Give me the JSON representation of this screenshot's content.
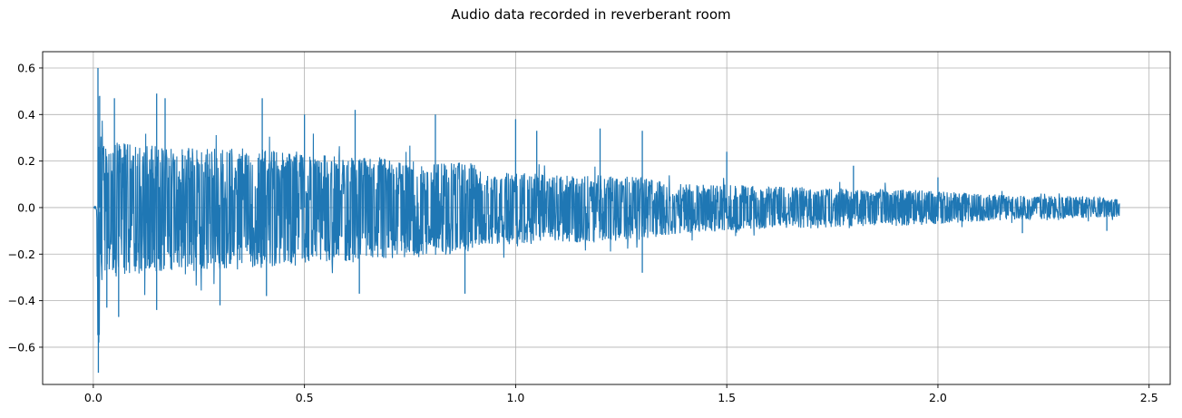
{
  "chart_data": {
    "type": "line",
    "title": "Audio data recorded in reverberant room",
    "xlabel": "",
    "ylabel": "",
    "xlim": [
      -0.12,
      2.55
    ],
    "ylim": [
      -0.76,
      0.67
    ],
    "grid": true,
    "line_color": "#1f77b4",
    "x_ticks": [
      {
        "value": 0.0,
        "label": "0.0"
      },
      {
        "value": 0.5,
        "label": "0.5"
      },
      {
        "value": 1.0,
        "label": "1.0"
      },
      {
        "value": 1.5,
        "label": "1.5"
      },
      {
        "value": 2.0,
        "label": "2.0"
      },
      {
        "value": 2.5,
        "label": "2.5"
      }
    ],
    "y_ticks": [
      {
        "value": -0.6,
        "label": "−0.6"
      },
      {
        "value": -0.4,
        "label": "−0.4"
      },
      {
        "value": -0.2,
        "label": "−0.2"
      },
      {
        "value": 0.0,
        "label": "0.0"
      },
      {
        "value": 0.2,
        "label": "0.2"
      },
      {
        "value": 0.4,
        "label": "0.4"
      },
      {
        "value": 0.6,
        "label": "0.6"
      }
    ],
    "series": [
      {
        "duration_s": 2.43,
        "envelope": {
          "x": [
            0.0,
            0.008,
            0.01,
            0.012,
            0.015,
            0.03,
            0.06,
            0.1,
            0.2,
            0.3,
            0.4,
            0.5,
            0.6,
            0.7,
            0.8,
            0.9,
            0.92,
            1.0,
            1.1,
            1.2,
            1.3,
            1.35,
            1.4,
            1.5,
            1.6,
            1.7,
            1.8,
            1.9,
            2.0,
            2.1,
            2.2,
            2.3,
            2.43
          ],
          "upper": [
            0.0,
            0.01,
            0.6,
            0.48,
            0.3,
            0.28,
            0.28,
            0.27,
            0.26,
            0.26,
            0.25,
            0.24,
            0.22,
            0.21,
            0.2,
            0.19,
            0.15,
            0.15,
            0.14,
            0.14,
            0.13,
            0.11,
            0.1,
            0.1,
            0.09,
            0.09,
            0.08,
            0.08,
            0.07,
            0.06,
            0.05,
            0.05,
            0.04
          ],
          "lower": [
            0.0,
            -0.01,
            -0.58,
            -0.7,
            -0.33,
            -0.3,
            -0.3,
            -0.29,
            -0.28,
            -0.27,
            -0.26,
            -0.25,
            -0.23,
            -0.22,
            -0.21,
            -0.2,
            -0.16,
            -0.16,
            -0.15,
            -0.15,
            -0.14,
            -0.12,
            -0.11,
            -0.1,
            -0.09,
            -0.09,
            -0.08,
            -0.08,
            -0.07,
            -0.06,
            -0.05,
            -0.05,
            -0.04
          ]
        },
        "peaks": [
          {
            "x": 0.011,
            "y": 0.6
          },
          {
            "x": 0.012,
            "y": -0.71
          },
          {
            "x": 0.013,
            "y": -0.58
          },
          {
            "x": 0.015,
            "y": 0.48
          },
          {
            "x": 0.032,
            "y": -0.43
          },
          {
            "x": 0.05,
            "y": 0.47
          },
          {
            "x": 0.06,
            "y": -0.47
          },
          {
            "x": 0.15,
            "y": 0.49
          },
          {
            "x": 0.15,
            "y": -0.44
          },
          {
            "x": 0.17,
            "y": 0.47
          },
          {
            "x": 0.3,
            "y": -0.42
          },
          {
            "x": 0.4,
            "y": 0.47
          },
          {
            "x": 0.41,
            "y": -0.38
          },
          {
            "x": 0.5,
            "y": 0.4
          },
          {
            "x": 0.62,
            "y": 0.42
          },
          {
            "x": 0.63,
            "y": -0.37
          },
          {
            "x": 0.81,
            "y": 0.4
          },
          {
            "x": 0.88,
            "y": -0.37
          },
          {
            "x": 1.0,
            "y": 0.38
          },
          {
            "x": 1.05,
            "y": 0.33
          },
          {
            "x": 1.2,
            "y": 0.34
          },
          {
            "x": 1.3,
            "y": 0.33
          },
          {
            "x": 1.3,
            "y": -0.28
          },
          {
            "x": 1.5,
            "y": 0.24
          },
          {
            "x": 1.8,
            "y": 0.18
          },
          {
            "x": 2.0,
            "y": 0.13
          },
          {
            "x": 2.2,
            "y": -0.11
          },
          {
            "x": 2.4,
            "y": -0.1
          }
        ]
      }
    ]
  }
}
